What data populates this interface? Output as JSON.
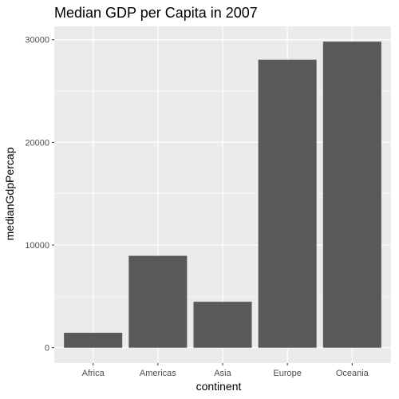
{
  "chart_data": {
    "type": "bar",
    "title": "Median GDP per Capita in 2007",
    "xlabel": "continent",
    "ylabel": "medianGdpPercap",
    "categories": [
      "Africa",
      "Americas",
      "Asia",
      "Europe",
      "Oceania"
    ],
    "values": [
      1452,
      8948,
      4471,
      28054,
      29810
    ],
    "ylim": [
      -1500,
      31300
    ],
    "yticks": [
      0,
      10000,
      20000,
      30000
    ],
    "ytick_labels": [
      "0",
      "10000",
      "20000",
      "30000"
    ],
    "grid": true,
    "legend": "none",
    "colors": {
      "panel_background": "#ebebeb",
      "grid_major": "#ffffff",
      "bar_fill": "#595959"
    }
  }
}
